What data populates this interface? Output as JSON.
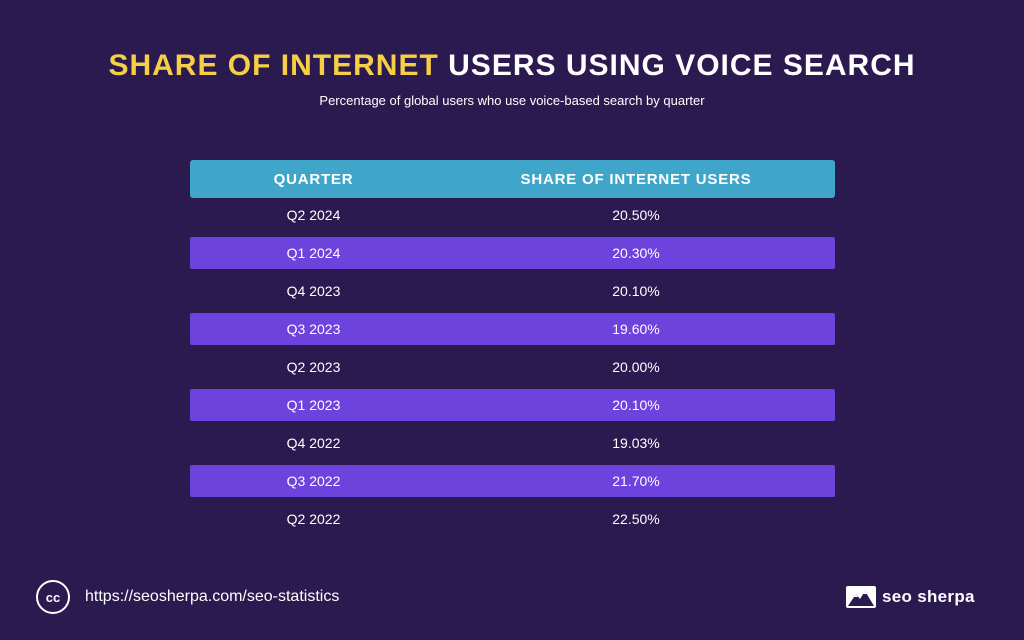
{
  "title": {
    "highlight": "SHARE OF INTERNET",
    "rest": "USERS USING VOICE SEARCH"
  },
  "subtitle": "Percentage of global users who use voice-based search by quarter",
  "table": {
    "headers": [
      "QUARTER",
      "SHARE OF INTERNET USERS"
    ],
    "rows": [
      [
        "Q2 2024",
        "20.50%"
      ],
      [
        "Q1 2024",
        "20.30%"
      ],
      [
        "Q4 2023",
        "20.10%"
      ],
      [
        "Q3 2023",
        "19.60%"
      ],
      [
        "Q2 2023",
        "20.00%"
      ],
      [
        "Q1 2023",
        "20.10%"
      ],
      [
        "Q4 2022",
        "19.03%"
      ],
      [
        "Q3 2022",
        "21.70%"
      ],
      [
        "Q2 2022",
        "22.50%"
      ]
    ]
  },
  "footer": {
    "cc_label": "cc",
    "url": "https://seosherpa.com/seo-statistics",
    "brand": "seo sherpa"
  },
  "colors": {
    "background": "#2b1a4f",
    "title_highlight": "#f7cf45",
    "header_bg": "#3fa6c9",
    "row_alt_bg": "#6d42dd",
    "text": "#ffffff"
  },
  "chart_data": {
    "type": "table",
    "title": "SHARE OF INTERNET USERS USING VOICE SEARCH",
    "subtitle": "Percentage of global users who use voice-based search by quarter",
    "columns": [
      "QUARTER",
      "SHARE OF INTERNET USERS"
    ],
    "categories": [
      "Q2 2024",
      "Q1 2024",
      "Q4 2023",
      "Q3 2023",
      "Q2 2023",
      "Q1 2023",
      "Q4 2022",
      "Q3 2022",
      "Q2 2022"
    ],
    "values": [
      20.5,
      20.3,
      20.1,
      19.6,
      20.0,
      20.1,
      19.03,
      21.7,
      22.5
    ]
  }
}
